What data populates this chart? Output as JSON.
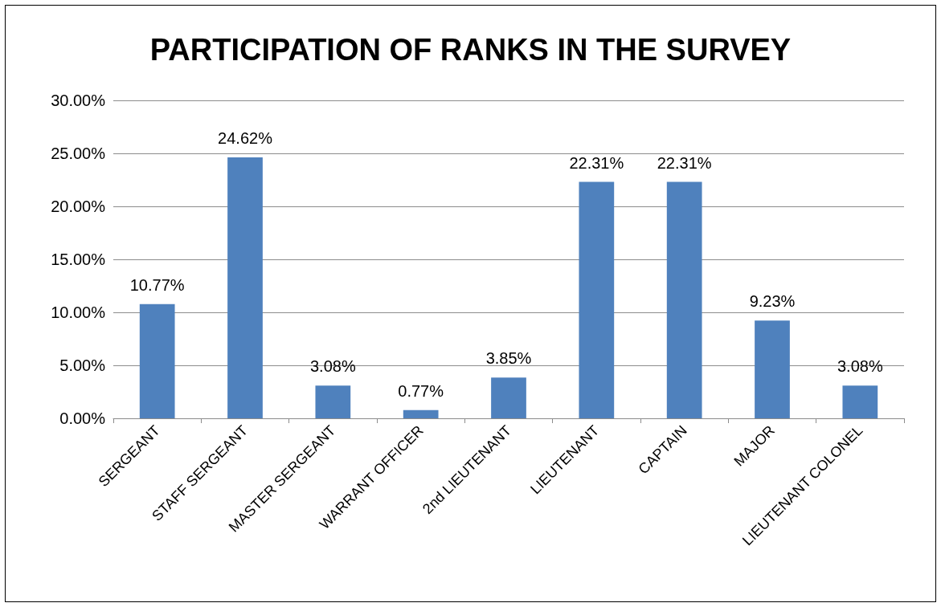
{
  "chart_data": {
    "type": "bar",
    "title": "PARTICIPATION OF RANKS IN THE SURVEY",
    "categories": [
      "SERGEANT",
      "STAFF SERGEANT",
      "MASTER SERGEANT",
      "WARRANT OFFICER",
      "2nd LIEUTENANT",
      "LIEUTENANT",
      "CAPTAIN",
      "MAJOR",
      "LIEUTENANT COLONEL"
    ],
    "values": [
      10.77,
      24.62,
      3.08,
      0.77,
      3.85,
      22.31,
      22.31,
      9.23,
      3.08
    ],
    "value_labels": [
      "10.77%",
      "24.62%",
      "3.08%",
      "0.77%",
      "3.85%",
      "22.31%",
      "22.31%",
      "9.23%",
      "3.08%"
    ],
    "color": "#4f81bd",
    "ylim": [
      0,
      30
    ],
    "yticks": [
      {
        "value": 0,
        "label": "0.00%"
      },
      {
        "value": 5,
        "label": "5.00%"
      },
      {
        "value": 10,
        "label": "10.00%"
      },
      {
        "value": 15,
        "label": "15.00%"
      },
      {
        "value": 20,
        "label": "20.00%"
      },
      {
        "value": 25,
        "label": "25.00%"
      },
      {
        "value": 30,
        "label": "30.00%"
      }
    ],
    "grid": "y"
  }
}
